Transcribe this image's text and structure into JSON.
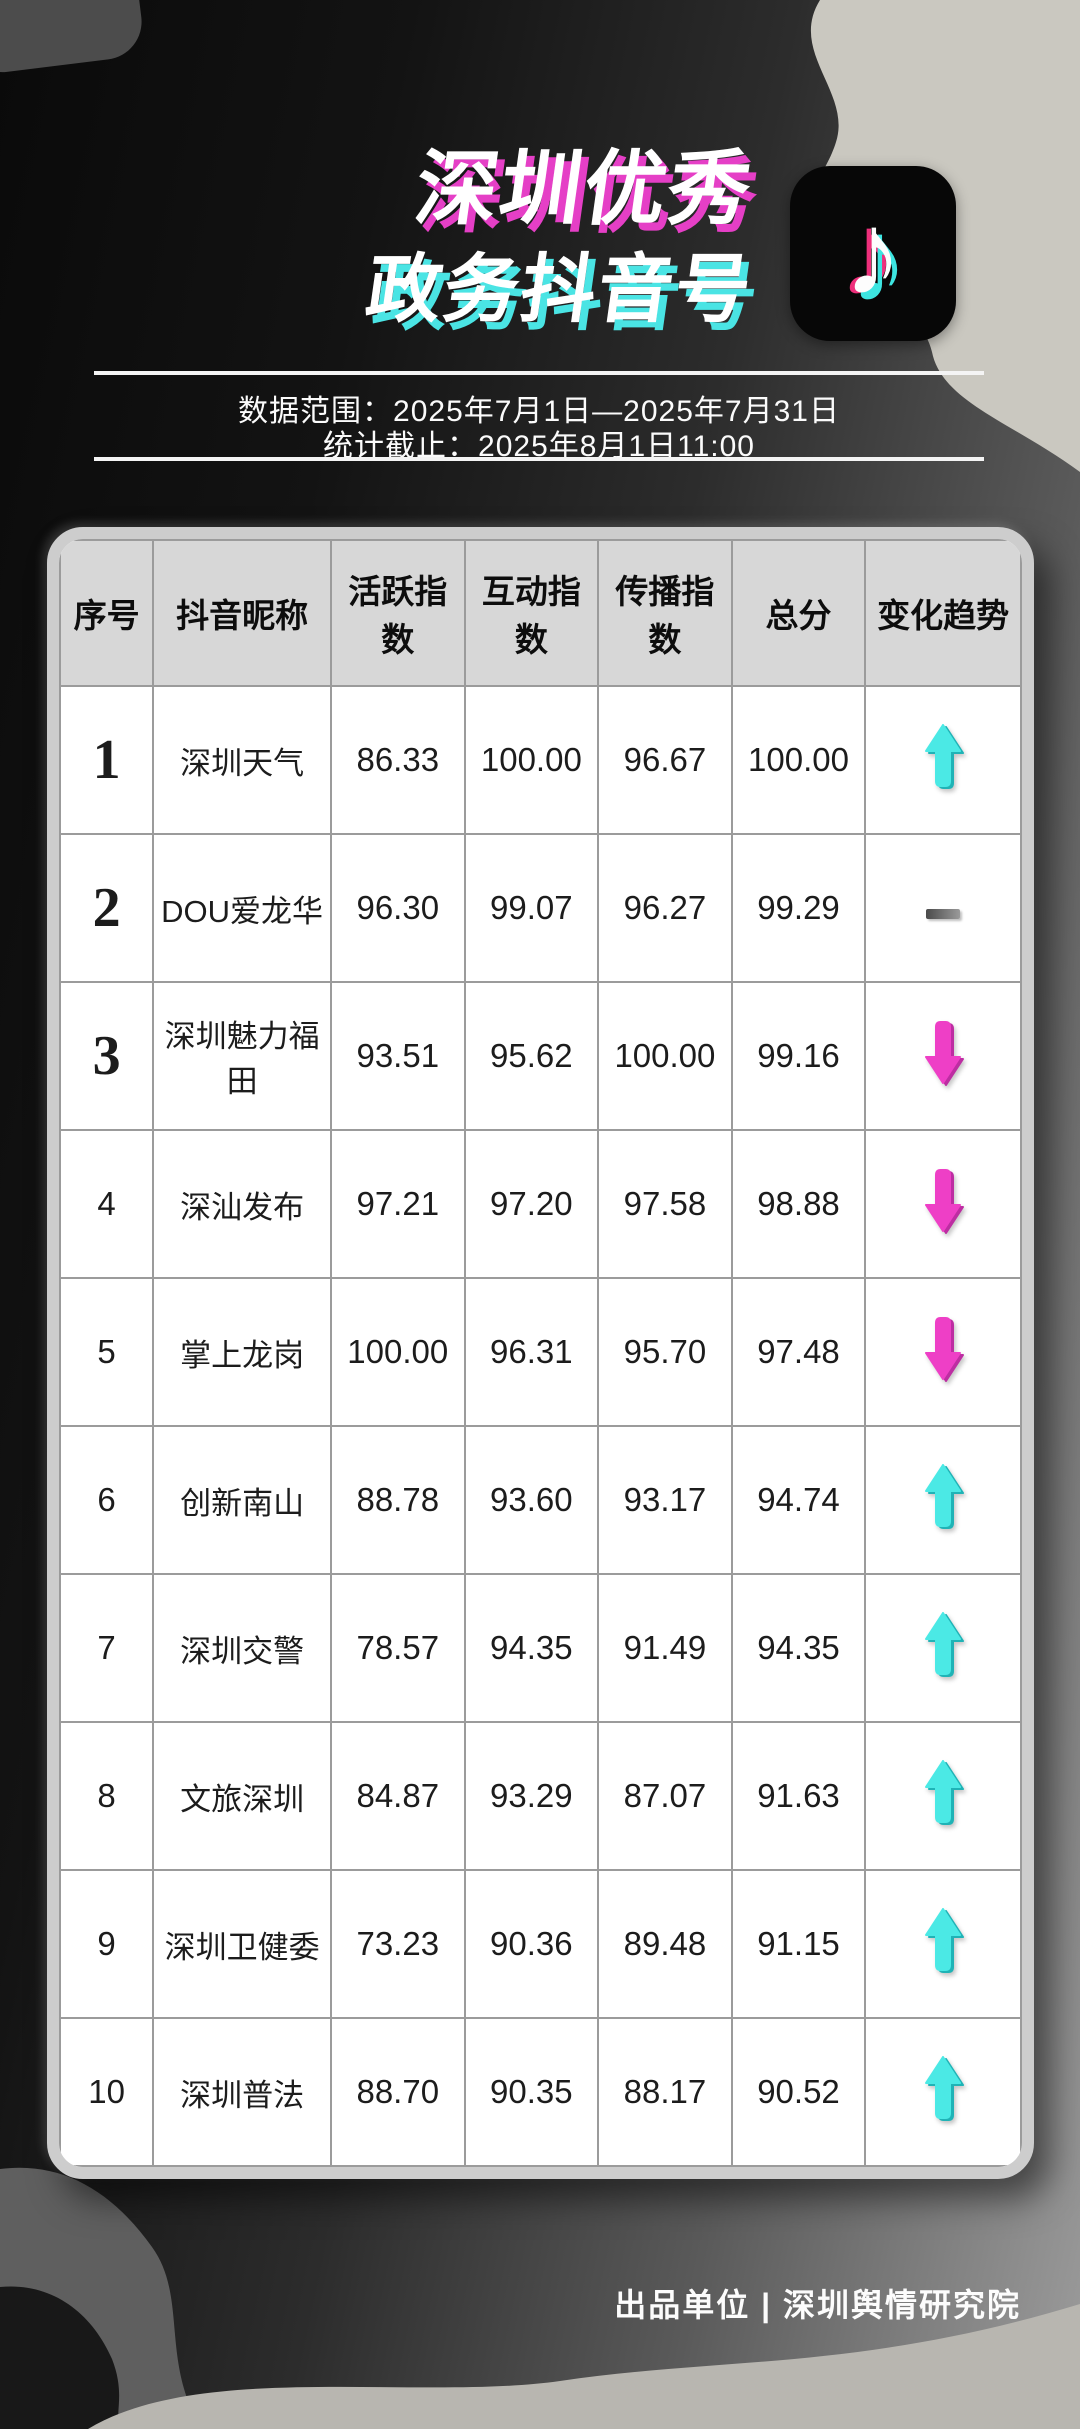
{
  "title": {
    "line1": "深圳优秀",
    "line2": "政务抖音号"
  },
  "icons": {
    "tiktok_note": "♪",
    "trend_up": "up-arrow",
    "trend_down": "down-arrow",
    "trend_flat": "dash"
  },
  "meta": {
    "data_range": "数据范围：2025年7月1日—2025年7月31日",
    "cutoff": "统计截止：2025年8月1日11:00"
  },
  "footer": {
    "credit": "出品单位 | 深圳舆情研究院"
  },
  "colors": {
    "magenta": "#EE3FC6",
    "cyan": "#4BE9E5",
    "title_shadow_line1": "#E53FC6",
    "title_shadow_line2": "#4AE4E4",
    "header_bg": "#D7D7D7",
    "grid_border": "#9B9B9B",
    "card_bevel": "#CDCDCD"
  },
  "chart_data": {
    "type": "table",
    "title": "深圳优秀政务抖音号",
    "columns": [
      "序号",
      "抖音昵称",
      "活跃指数",
      "互动指数",
      "传播指数",
      "总分",
      "变化趋势"
    ],
    "rows": [
      {
        "rank": "1",
        "name": "深圳天气",
        "active": "86.33",
        "interact": "100.00",
        "spread": "96.67",
        "total": "100.00",
        "trend": "up"
      },
      {
        "rank": "2",
        "name": "DOU爱龙华",
        "active": "96.30",
        "interact": "99.07",
        "spread": "96.27",
        "total": "99.29",
        "trend": "flat"
      },
      {
        "rank": "3",
        "name": "深圳魅力福田",
        "active": "93.51",
        "interact": "95.62",
        "spread": "100.00",
        "total": "99.16",
        "trend": "down"
      },
      {
        "rank": "4",
        "name": "深汕发布",
        "active": "97.21",
        "interact": "97.20",
        "spread": "97.58",
        "total": "98.88",
        "trend": "down"
      },
      {
        "rank": "5",
        "name": "掌上龙岗",
        "active": "100.00",
        "interact": "96.31",
        "spread": "95.70",
        "total": "97.48",
        "trend": "down"
      },
      {
        "rank": "6",
        "name": "创新南山",
        "active": "88.78",
        "interact": "93.60",
        "spread": "93.17",
        "total": "94.74",
        "trend": "up"
      },
      {
        "rank": "7",
        "name": "深圳交警",
        "active": "78.57",
        "interact": "94.35",
        "spread": "91.49",
        "total": "94.35",
        "trend": "up"
      },
      {
        "rank": "8",
        "name": "文旅深圳",
        "active": "84.87",
        "interact": "93.29",
        "spread": "87.07",
        "total": "91.63",
        "trend": "up"
      },
      {
        "rank": "9",
        "name": "深圳卫健委",
        "active": "73.23",
        "interact": "90.36",
        "spread": "89.48",
        "total": "91.15",
        "trend": "up"
      },
      {
        "rank": "10",
        "name": "深圳普法",
        "active": "88.70",
        "interact": "90.35",
        "spread": "88.17",
        "total": "90.52",
        "trend": "up"
      }
    ]
  }
}
